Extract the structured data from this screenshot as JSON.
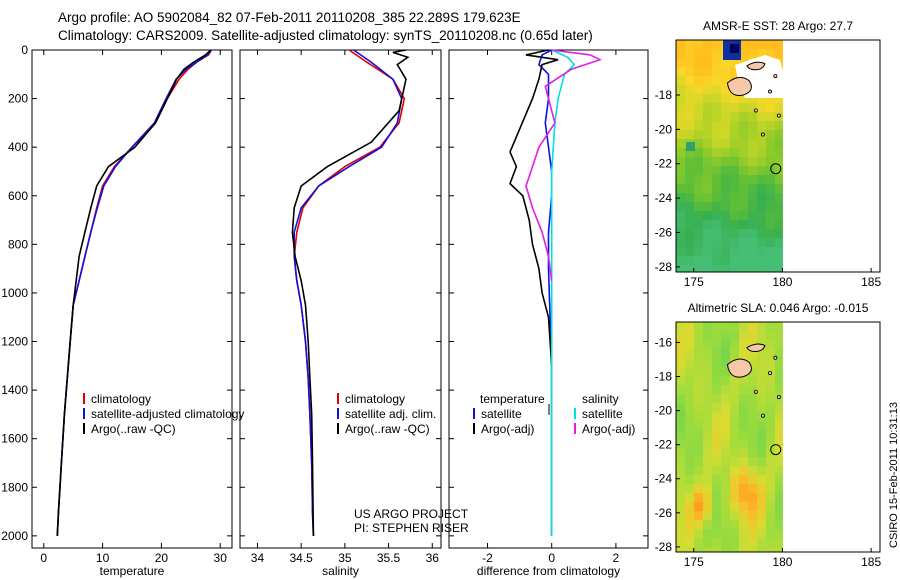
{
  "header": {
    "line1": "Argo profile: AO 5902084_82 07-Feb-2011 20110208_385 22.289S 179.623E",
    "line2": "Climatology: CARS2009. Satellite-adjusted climatology: synTS_20110208.nc (0.65d later)"
  },
  "stamp": "CSIRO 15-Feb-2011 10:31:13",
  "colors": {
    "climatology": "#e00000",
    "satellite": "#1010e0",
    "argo": "#000000",
    "sal_satellite": "#00e0e0",
    "sal_argo": "#e020e0",
    "land": "#f4c8a8"
  },
  "chart_data": [
    {
      "type": "line",
      "id": "temperature",
      "xlabel": "temperature",
      "ylabel": "",
      "xlim": [
        -2,
        32
      ],
      "ylim": [
        2050,
        0
      ],
      "xticks": [
        0,
        10,
        20,
        30
      ],
      "yticks": [
        0,
        200,
        400,
        600,
        800,
        1000,
        1200,
        1400,
        1600,
        1800,
        2000
      ],
      "series": [
        {
          "name": "climatology",
          "color": "#e00000",
          "x": [
            28.5,
            28.0,
            26.0,
            24.5,
            23.0,
            21.0,
            19.0,
            15.0,
            12.0,
            10.0,
            9.0,
            8.0,
            7.0,
            6.0,
            5.0,
            4.5,
            4.0,
            3.5,
            3.0,
            2.5,
            2.3
          ],
          "y": [
            0,
            20,
            50,
            80,
            120,
            200,
            300,
            400,
            480,
            560,
            650,
            750,
            850,
            950,
            1050,
            1200,
            1350,
            1500,
            1700,
            1900,
            2000
          ]
        },
        {
          "name": "satellite-adjusted climatology",
          "color": "#1010e0",
          "x": [
            28.5,
            27.8,
            26.0,
            24.2,
            22.5,
            20.8,
            18.8,
            15.0,
            12.2,
            10.2,
            9.1,
            8.0,
            7.0,
            6.0,
            5.0,
            4.5,
            4.0,
            3.5,
            3.0,
            2.5,
            2.3
          ],
          "y": [
            0,
            20,
            50,
            80,
            120,
            200,
            300,
            400,
            480,
            560,
            650,
            750,
            850,
            950,
            1050,
            1200,
            1350,
            1500,
            1700,
            1900,
            2000
          ]
        },
        {
          "name": "Argo(..raw -QC)",
          "color": "#000000",
          "x": [
            28.4,
            27.5,
            25.5,
            23.8,
            22.6,
            21.0,
            19.0,
            15.5,
            11.0,
            9.0,
            8.0,
            7.0,
            6.0,
            5.0,
            4.5,
            4.0,
            3.5,
            3.0,
            2.5,
            2.3
          ],
          "y": [
            0,
            20,
            50,
            80,
            120,
            200,
            300,
            400,
            480,
            560,
            650,
            750,
            850,
            1050,
            1200,
            1350,
            1500,
            1700,
            1900,
            2000
          ]
        }
      ],
      "legend": {
        "placement": "lower-right",
        "entries": [
          "climatology",
          "satellite-adjusted climatology",
          "Argo(..raw -QC)"
        ]
      }
    },
    {
      "type": "line",
      "id": "salinity",
      "xlabel": "salinity",
      "ylabel": "",
      "xlim": [
        33.8,
        36.1
      ],
      "ylim": [
        2050,
        0
      ],
      "xticks": [
        34,
        34.5,
        35,
        35.5,
        36
      ],
      "series": [
        {
          "name": "climatology",
          "color": "#e00000",
          "x": [
            35.05,
            35.25,
            35.55,
            35.68,
            35.62,
            35.4,
            35.0,
            34.7,
            34.52,
            34.45,
            34.42,
            34.45,
            34.5,
            34.55,
            34.58,
            34.6,
            34.62,
            34.63,
            34.64
          ],
          "y": [
            0,
            50,
            120,
            200,
            300,
            400,
            480,
            560,
            650,
            750,
            850,
            950,
            1050,
            1200,
            1350,
            1500,
            1700,
            1900,
            2000
          ]
        },
        {
          "name": "satellite adj. clim.",
          "color": "#1010e0",
          "x": [
            35.1,
            35.3,
            35.55,
            35.65,
            35.6,
            35.42,
            35.05,
            34.7,
            34.5,
            34.42,
            34.42,
            34.45,
            34.5,
            34.55,
            34.58,
            34.6,
            34.62,
            34.63,
            34.64
          ],
          "y": [
            0,
            50,
            120,
            200,
            300,
            400,
            480,
            560,
            650,
            750,
            850,
            950,
            1050,
            1200,
            1350,
            1500,
            1700,
            1900,
            2000
          ]
        },
        {
          "name": "Argo(..raw -QC)",
          "color": "#000000",
          "x": [
            35.7,
            35.55,
            35.72,
            35.6,
            35.7,
            35.62,
            35.3,
            34.8,
            34.5,
            34.42,
            34.4,
            34.43,
            34.5,
            34.55,
            34.58,
            34.6,
            34.62,
            34.63,
            34.64
          ],
          "y": [
            0,
            10,
            30,
            60,
            120,
            250,
            380,
            480,
            560,
            650,
            750,
            850,
            950,
            1050,
            1200,
            1350,
            1500,
            1700,
            2000
          ]
        }
      ],
      "legend": {
        "placement": "lower-right",
        "entries": [
          "climatology",
          "satellite adj. clim.",
          "Argo(..raw -QC)"
        ]
      },
      "annotation": [
        "US ARGO PROJECT",
        "PI: STEPHEN RISER"
      ]
    },
    {
      "type": "line",
      "id": "difference",
      "xlabel": "difference from climatology",
      "ylabel": "",
      "xlim": [
        -3.2,
        3.0
      ],
      "ylim": [
        2050,
        0
      ],
      "xticks": [
        -2,
        0,
        2
      ],
      "series": [
        {
          "name": "temperature satellite",
          "color": "#1010e0",
          "x": [
            0.0,
            -0.3,
            -0.4,
            -0.1,
            -0.1,
            -0.2,
            -0.1,
            0.0,
            0.0,
            -0.1,
            -0.1,
            -0.05,
            0.0,
            0.0
          ],
          "y": [
            0,
            20,
            60,
            100,
            200,
            300,
            400,
            500,
            600,
            750,
            900,
            1100,
            1300,
            2000
          ]
        },
        {
          "name": "temperature Argo(-adj)",
          "color": "#000000",
          "x": [
            -0.1,
            -0.8,
            0.2,
            -0.3,
            -0.4,
            -0.6,
            -1.3,
            -1.1,
            -1.3,
            -0.9,
            -0.7,
            -0.6,
            -0.4,
            -0.3,
            -0.1,
            0.0,
            0.0
          ],
          "y": [
            0,
            20,
            40,
            60,
            120,
            200,
            420,
            480,
            550,
            600,
            700,
            800,
            900,
            1000,
            1100,
            1300,
            2000
          ]
        },
        {
          "name": "salinity satellite",
          "color": "#00e0e0",
          "x": [
            0.0,
            0.5,
            0.7,
            0.4,
            0.2,
            0.1,
            0.05,
            0.0,
            0.0,
            0.0,
            0.0,
            0.0
          ],
          "y": [
            0,
            30,
            60,
            100,
            200,
            300,
            400,
            500,
            600,
            800,
            1000,
            2000
          ]
        },
        {
          "name": "salinity Argo(-adj)",
          "color": "#e020e0",
          "x": [
            0.0,
            1.2,
            1.5,
            0.6,
            -0.2,
            0.1,
            -0.4,
            -0.6,
            -0.8,
            -0.6,
            -0.3,
            -0.1,
            0.0
          ],
          "y": [
            0,
            20,
            40,
            80,
            150,
            300,
            400,
            480,
            560,
            650,
            750,
            850,
            950
          ]
        }
      ],
      "legend": {
        "placement": "lower",
        "groups": [
          "temperature",
          "salinity"
        ],
        "entries": [
          "satellite",
          "Argo(-adj)",
          "satellite",
          "Argo(-adj)"
        ]
      }
    },
    {
      "type": "heatmap",
      "id": "sst-map",
      "title": "AMSR-E SST: 28 Argo: 27.7",
      "xlim": [
        174,
        185.5
      ],
      "ylim": [
        -28.3,
        -14.8
      ],
      "xticks": [
        175,
        180,
        185
      ],
      "yticks": [
        -18,
        -20,
        -22,
        -24,
        -26,
        -28
      ],
      "float_position": [
        179.623,
        -22.289
      ]
    },
    {
      "type": "heatmap",
      "id": "sla-map",
      "title": "Altimetric SLA: 0.046 Argo: -0.015",
      "xlim": [
        174,
        185.5
      ],
      "ylim": [
        -28.3,
        -14.8
      ],
      "xticks": [
        175,
        180,
        185
      ],
      "yticks": [
        -16,
        -18,
        -20,
        -22,
        -24,
        -26,
        -28
      ],
      "float_position": [
        179.623,
        -22.289
      ]
    }
  ]
}
